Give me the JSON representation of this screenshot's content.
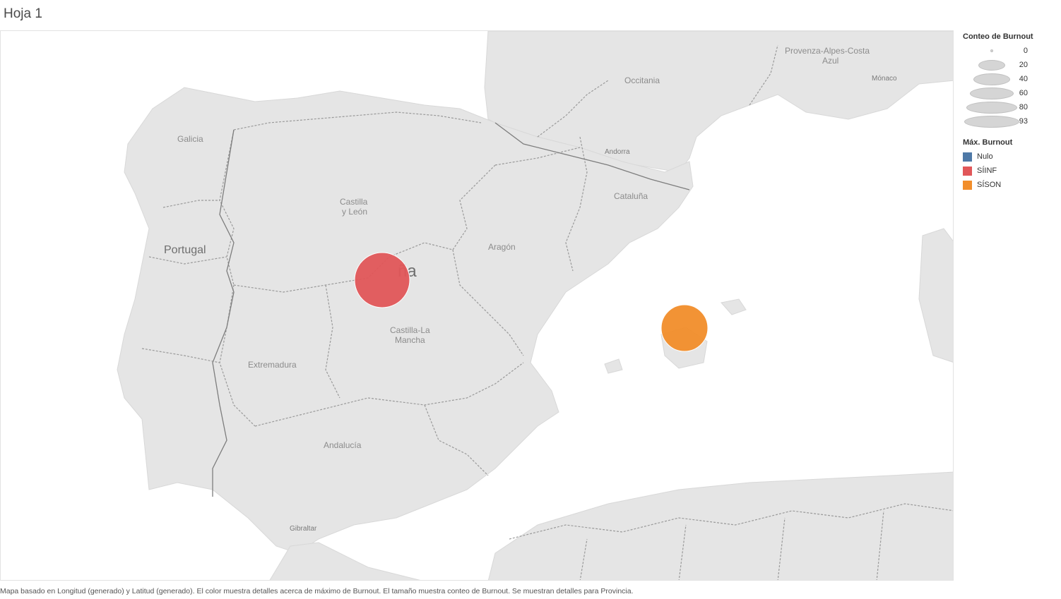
{
  "sheet": {
    "title": "Hoja 1"
  },
  "map": {
    "labels": {
      "provenza": "Provenza-Alpes-Costa",
      "provenza2": "Azul",
      "monaco": "Mónaco",
      "occitania": "Occitania",
      "galicia": "Galicia",
      "andorra": "Andorra",
      "castilla_leon_1": "Castilla",
      "castilla_leon_2": "y León",
      "cataluna": "Cataluña",
      "portugal": "Portugal",
      "aragon": "Aragón",
      "espana": "ña",
      "castilla_mancha_1": "Castilla-La",
      "castilla_mancha_2": "Mancha",
      "extremadura": "Extremadura",
      "andalucia": "Andalucía",
      "gibraltar": "Gibraltar"
    },
    "marks": [
      {
        "name": "madrid-mark",
        "value_class": "SÍINF",
        "count": 93,
        "color": "#e15759"
      },
      {
        "name": "baleares-mark",
        "value_class": "SÍSON",
        "count": 50,
        "color": "#f28e2b"
      }
    ]
  },
  "legend": {
    "size_title": "Conteo de Burnout",
    "size_steps": [
      "0",
      "20",
      "40",
      "60",
      "80",
      "93"
    ],
    "color_title": "Máx. Burnout",
    "color_items": [
      {
        "label": "Nulo",
        "color": "#4e79a7"
      },
      {
        "label": "SÍINF",
        "color": "#e15759"
      },
      {
        "label": "SÍSON",
        "color": "#f28e2b"
      }
    ]
  },
  "caption": "Mapa basado en Longitud (generado) y Latitud (generado).  El color muestra detalles acerca de máximo de Burnout.  El tamaño muestra conteo de Burnout.  Se muestran detalles para Provincia."
}
